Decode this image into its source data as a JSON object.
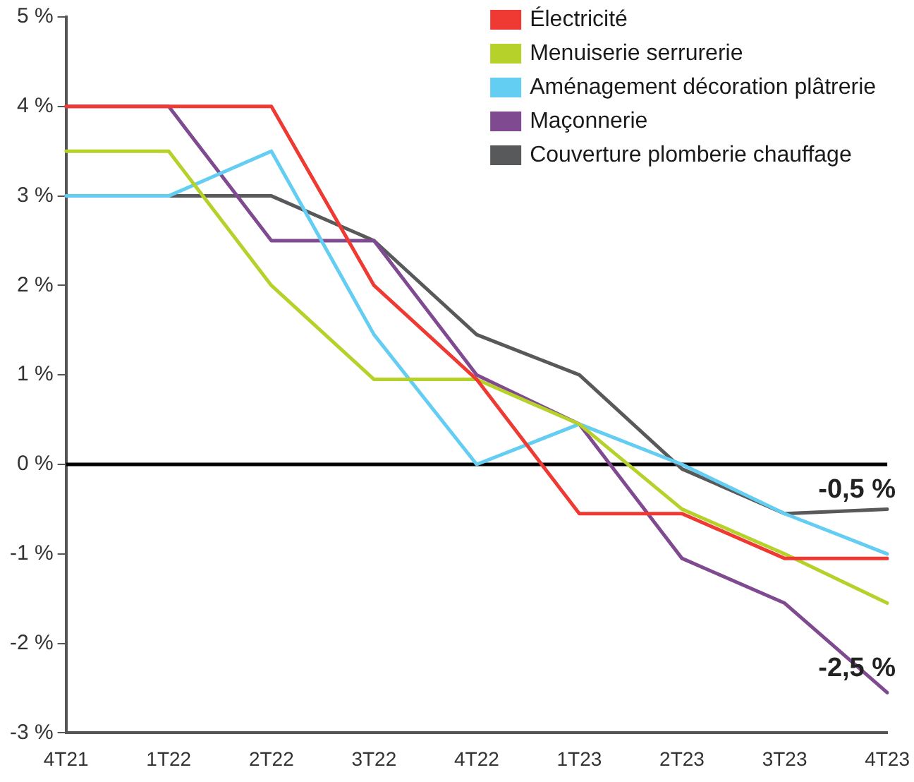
{
  "chart_data": {
    "type": "line",
    "categories": [
      "4T21",
      "1T22",
      "2T22",
      "3T22",
      "4T22",
      "1T23",
      "2T23",
      "3T23",
      "4T23"
    ],
    "series": [
      {
        "name": "Électricité",
        "color": "#ee3a33",
        "values": [
          4,
          4,
          4,
          2,
          0.95,
          -0.55,
          -0.55,
          -1.05,
          -1.05
        ]
      },
      {
        "name": "Menuiserie serrurerie",
        "color": "#b5d12a",
        "values": [
          3.5,
          3.5,
          2,
          0.95,
          0.95,
          0.45,
          -0.5,
          -1.0,
          -1.55
        ]
      },
      {
        "name": "Aménagement décoration plâtrerie",
        "color": "#63cdf2",
        "values": [
          3,
          3,
          3.5,
          1.45,
          0,
          0.45,
          0,
          -0.55,
          -1.0
        ]
      },
      {
        "name": "Maçonnerie",
        "color": "#7f4a8f",
        "values": [
          4,
          4,
          2.5,
          2.5,
          1.0,
          0.45,
          -1.05,
          -1.55,
          -2.55
        ]
      },
      {
        "name": "Couverture plomberie chauffage",
        "color": "#58595b",
        "values": [
          3,
          3,
          3,
          2.5,
          1.45,
          1.0,
          -0.05,
          -0.55,
          -0.5
        ]
      }
    ],
    "ylim": [
      -3,
      5
    ],
    "yticks": [
      {
        "value": -3,
        "label": "-3 %"
      },
      {
        "value": -2,
        "label": "-2 %"
      },
      {
        "value": -1,
        "label": "-1 %"
      },
      {
        "value": 0,
        "label": "0 %"
      },
      {
        "value": 1,
        "label": "1 %"
      },
      {
        "value": 2,
        "label": "2 %"
      },
      {
        "value": 3,
        "label": "3 %"
      },
      {
        "value": 4,
        "label": "4 %"
      },
      {
        "value": 5,
        "label": "5 %"
      }
    ],
    "ref_lines": [
      {
        "axis": "y",
        "value": 0,
        "color": "#000000"
      }
    ],
    "annotations": [
      {
        "text": "-0,5 %",
        "x": "4T23",
        "y": -0.5
      },
      {
        "text": "-2,5 %",
        "x": "4T23",
        "y": -2.5
      }
    ],
    "grid": false,
    "legend": "top right",
    "marker": "none",
    "line_style": "solid"
  }
}
